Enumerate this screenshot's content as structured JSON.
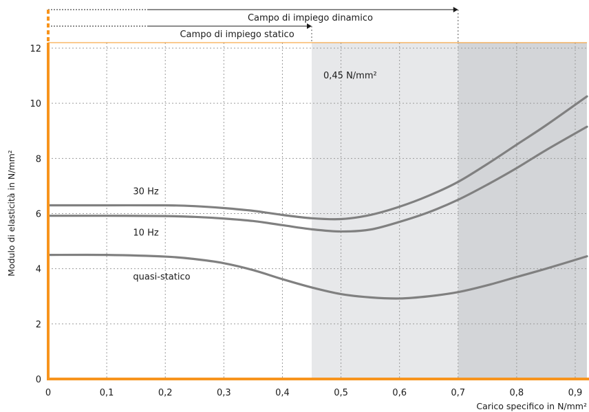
{
  "chart_data": {
    "type": "line",
    "xlabel": "Carico specifico in N/mm²",
    "ylabel": "Modulo di elasticità in N/mm²",
    "xlim": [
      0,
      0.92
    ],
    "ylim": [
      0,
      12.2
    ],
    "x_ticks": [
      0,
      0.1,
      0.2,
      0.3,
      0.4,
      0.5,
      0.6,
      0.7,
      0.8,
      0.9
    ],
    "x_tick_labels": [
      "0",
      "0,1",
      "0,2",
      "0,3",
      "0,4",
      "0,5",
      "0,6",
      "0,7",
      "0,8",
      "0,9"
    ],
    "y_ticks": [
      0,
      2,
      4,
      6,
      8,
      10,
      12
    ],
    "y_tick_labels": [
      "0",
      "2",
      "4",
      "6",
      "8",
      "10",
      "12"
    ],
    "grid": true,
    "series": [
      {
        "name": "30 Hz",
        "x": [
          0,
          0.1,
          0.2,
          0.25,
          0.3,
          0.35,
          0.4,
          0.45,
          0.5,
          0.55,
          0.6,
          0.65,
          0.7,
          0.75,
          0.8,
          0.85,
          0.92
        ],
        "y": [
          6.3,
          6.3,
          6.3,
          6.27,
          6.2,
          6.1,
          5.95,
          5.83,
          5.8,
          5.95,
          6.25,
          6.65,
          7.15,
          7.8,
          8.5,
          9.2,
          10.25
        ]
      },
      {
        "name": "10 Hz",
        "x": [
          0,
          0.1,
          0.2,
          0.25,
          0.3,
          0.35,
          0.4,
          0.45,
          0.5,
          0.55,
          0.6,
          0.65,
          0.7,
          0.75,
          0.8,
          0.85,
          0.92
        ],
        "y": [
          5.92,
          5.92,
          5.91,
          5.88,
          5.82,
          5.73,
          5.58,
          5.43,
          5.35,
          5.42,
          5.7,
          6.05,
          6.5,
          7.05,
          7.65,
          8.3,
          9.15
        ]
      },
      {
        "name": "quasi-statico",
        "x": [
          0,
          0.1,
          0.2,
          0.25,
          0.3,
          0.35,
          0.4,
          0.45,
          0.5,
          0.55,
          0.6,
          0.65,
          0.7,
          0.75,
          0.8,
          0.85,
          0.92
        ],
        "y": [
          4.5,
          4.5,
          4.44,
          4.35,
          4.2,
          3.95,
          3.62,
          3.32,
          3.08,
          2.96,
          2.92,
          3.0,
          3.15,
          3.4,
          3.7,
          4.0,
          4.45
        ]
      }
    ],
    "regions": [
      {
        "x_from": 0.45,
        "x_to": 0.7,
        "shade": "#e7e8ea"
      },
      {
        "x_from": 0.7,
        "x_to": 0.92,
        "shade": "#d3d5d8"
      }
    ],
    "ranges": [
      {
        "label": "Campo di impiego dinamico",
        "x_from": 0,
        "x_to": 0.7
      },
      {
        "label": "Campo di impiego statico",
        "x_from": 0,
        "x_to": 0.45
      }
    ],
    "annotations": [
      {
        "text": "0,45 N/mm²",
        "x": 0.47,
        "y": 10.9
      },
      {
        "text": "30 Hz",
        "x": 0.145,
        "y": 6.7
      },
      {
        "text": "10 Hz",
        "x": 0.145,
        "y": 5.2
      },
      {
        "text": "quasi-statico",
        "x": 0.145,
        "y": 3.6
      }
    ],
    "colors": {
      "axis": "#f7941d",
      "line": "#808080",
      "grid": "#9a9a9a",
      "text": "#1a1a1a"
    }
  }
}
